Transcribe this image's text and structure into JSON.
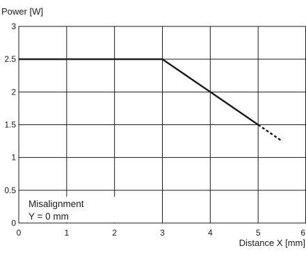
{
  "chart_data": {
    "type": "line",
    "ylabel": "Power [W]",
    "xlabel": "Distance X [mm]",
    "xlim": [
      0,
      6
    ],
    "ylim": [
      0,
      3
    ],
    "x_ticks": [
      0,
      1,
      2,
      3,
      4,
      5,
      6
    ],
    "y_ticks": [
      0,
      0.5,
      1,
      1.5,
      2,
      2.5,
      3
    ],
    "x_tick_labels": [
      "0",
      "1",
      "2",
      "3",
      "4",
      "5",
      "6"
    ],
    "y_tick_labels": [
      "0",
      "0.5",
      "1",
      "1.5",
      "2",
      "2.5",
      "3"
    ],
    "grid": true,
    "legend": "none",
    "annotation": {
      "line1": "Misalignment",
      "line2": "Y = 0 mm"
    },
    "series": [
      {
        "style": "solid",
        "x": [
          0,
          3,
          4,
          5
        ],
        "y": [
          2.5,
          2.5,
          2.0,
          1.5
        ]
      },
      {
        "style": "dashed",
        "x": [
          5,
          5.5
        ],
        "y": [
          1.5,
          1.25
        ]
      }
    ]
  },
  "colors": {
    "line": "#1a1a1a",
    "background": "#ffffff"
  }
}
